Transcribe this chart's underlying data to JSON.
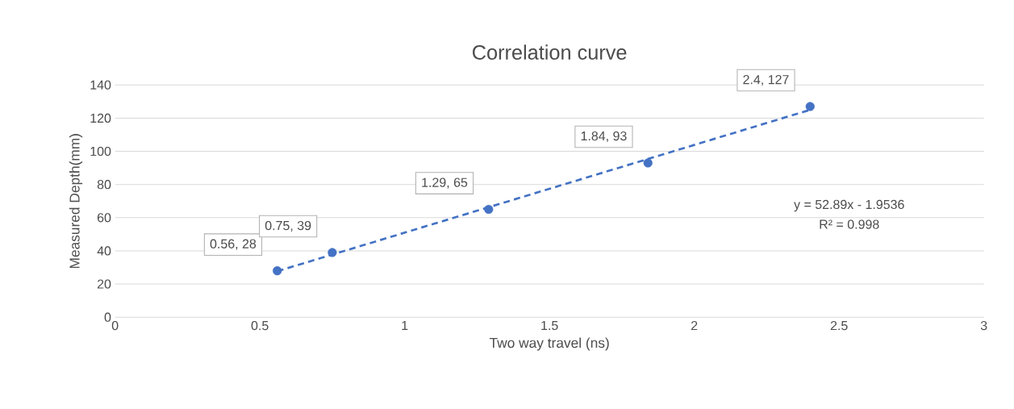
{
  "chart_data": {
    "type": "scatter",
    "title": "Correlation curve",
    "xlabel": "Two way travel (ns)",
    "ylabel": "Measured Depth(mm)",
    "xlim": [
      0,
      3
    ],
    "xticks": [
      0,
      0.5,
      1,
      1.5,
      2,
      2.5,
      3
    ],
    "ylim": [
      0,
      140
    ],
    "yticks": [
      0,
      20,
      40,
      60,
      80,
      100,
      120,
      140
    ],
    "grid": "y",
    "series": [
      {
        "color": "#4472c4",
        "marker": "circle",
        "x": [
          0.56,
          0.75,
          1.29,
          1.84,
          2.4
        ],
        "values": [
          28,
          39,
          65,
          93,
          127
        ],
        "value_labels": [
          "0.56, 28",
          "0.75, 39",
          "1.29, 65",
          "1.84, 93",
          "2.4, 127"
        ]
      },
      {
        "type": "line",
        "color": "#4472c4",
        "marker": "none",
        "line_style": "dashed",
        "x": [
          0.56,
          2.4
        ],
        "values": [
          27.7,
          125
        ]
      }
    ],
    "annotations": [
      "y = 52.89x - 1.9536",
      "R² = 0.998"
    ]
  }
}
